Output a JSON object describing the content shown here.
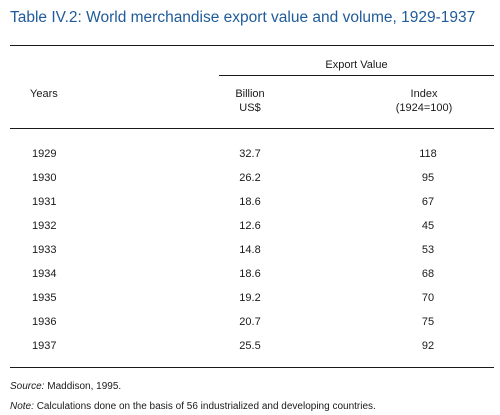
{
  "title": "Table IV.2: World merchandise export value and volume, 1929-1937",
  "headers": {
    "span": "Export Value",
    "years": "Years",
    "col2_line1": "Billion",
    "col2_line2": "US$",
    "col3_line1": "Index",
    "col3_line2": "(1924=100)"
  },
  "rows": [
    {
      "year": "1929",
      "billion": "32.7",
      "index": "118"
    },
    {
      "year": "1930",
      "billion": "26.2",
      "index": "95"
    },
    {
      "year": "1931",
      "billion": "18.6",
      "index": "67"
    },
    {
      "year": "1932",
      "billion": "12.6",
      "index": "45"
    },
    {
      "year": "1933",
      "billion": "14.8",
      "index": "53"
    },
    {
      "year": "1934",
      "billion": "18.6",
      "index": "68"
    },
    {
      "year": "1935",
      "billion": "19.2",
      "index": "70"
    },
    {
      "year": "1936",
      "billion": "20.7",
      "index": "75"
    },
    {
      "year": "1937",
      "billion": "25.5",
      "index": "92"
    }
  ],
  "footnotes": {
    "source_label": "Source:",
    "source_text": "Maddison, 1995.",
    "note_label": "Note:",
    "note_text": "Calculations done on the basis of 56 industrialized and developing countries."
  },
  "colors": {
    "title": "#1f5b9a",
    "rule": "#1a1a1a"
  }
}
